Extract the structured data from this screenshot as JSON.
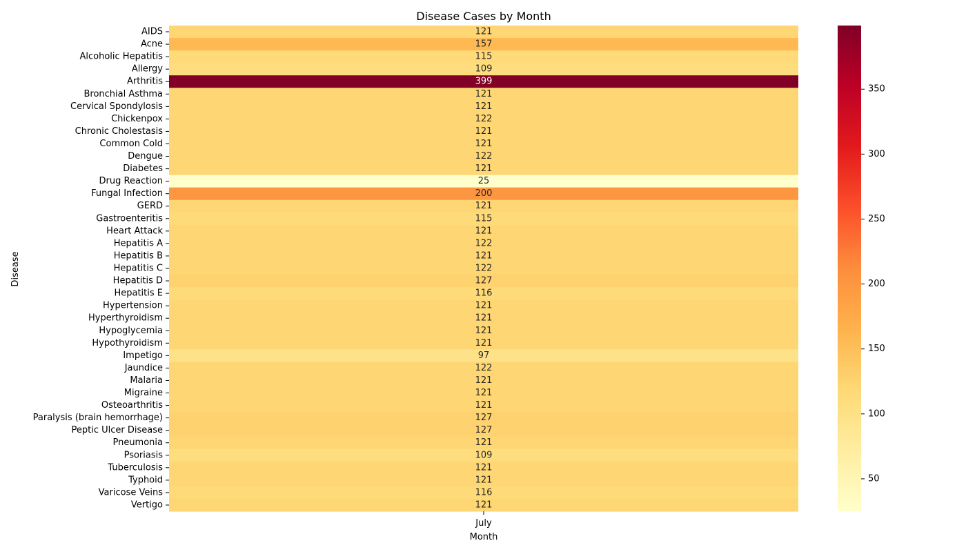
{
  "chart_data": {
    "type": "heatmap",
    "title": "Disease Cases by Month",
    "xlabel": "Month",
    "ylabel": "Disease",
    "x_categories": [
      "July"
    ],
    "y_categories": [
      "AIDS",
      "Acne",
      "Alcoholic Hepatitis",
      "Allergy",
      "Arthritis",
      "Bronchial Asthma",
      "Cervical Spondylosis",
      "Chickenpox",
      "Chronic Cholestasis",
      "Common Cold",
      "Dengue",
      "Diabetes ",
      "Drug Reaction",
      "Fungal Infection",
      "GERD",
      "Gastroenteritis",
      "Heart Attack",
      "Hepatitis A",
      "Hepatitis B",
      "Hepatitis C",
      "Hepatitis D",
      "Hepatitis E",
      "Hypertension ",
      "Hyperthyroidism",
      "Hypoglycemia",
      "Hypothyroidism",
      "Impetigo",
      "Jaundice",
      "Malaria",
      "Migraine",
      "Osteoarthritis",
      "Paralysis (brain hemorrhage)",
      "Peptic Ulcer Disease",
      "Pneumonia",
      "Psoriasis",
      "Tuberculosis",
      "Typhoid",
      "Varicose Veins",
      "Vertigo"
    ],
    "values": [
      121,
      157,
      115,
      109,
      399,
      121,
      121,
      122,
      121,
      121,
      122,
      121,
      25,
      200,
      121,
      115,
      121,
      122,
      121,
      122,
      127,
      116,
      121,
      121,
      121,
      121,
      97,
      122,
      121,
      121,
      121,
      127,
      127,
      121,
      109,
      121,
      121,
      116,
      121
    ],
    "colormap": "YlOrRd",
    "colorbar": {
      "min": 25,
      "max": 399,
      "ticks": [
        50,
        100,
        150,
        200,
        250,
        300,
        350
      ]
    },
    "annotations": true
  }
}
